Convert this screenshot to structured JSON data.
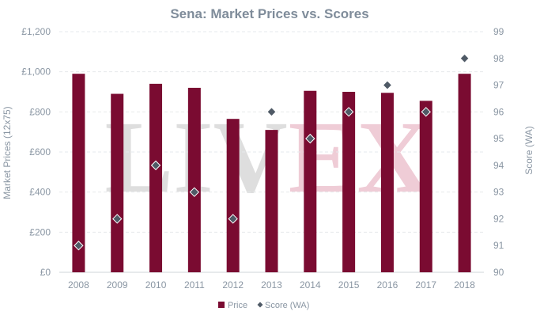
{
  "chart_data": {
    "type": "bar",
    "title": "Sena: Market Prices vs. Scores",
    "categories": [
      "2008",
      "2009",
      "2010",
      "2011",
      "2012",
      "2013",
      "2014",
      "2015",
      "2016",
      "2017",
      "2018"
    ],
    "series": [
      {
        "name": "Price",
        "type": "bar",
        "axis": "left",
        "values": [
          990,
          890,
          940,
          920,
          765,
          710,
          905,
          900,
          895,
          855,
          990
        ]
      },
      {
        "name": "Score (WA)",
        "type": "scatter",
        "axis": "right",
        "values": [
          91,
          92,
          94,
          93,
          92,
          96,
          95,
          96,
          97,
          96,
          98
        ]
      }
    ],
    "y_left": {
      "label": "Market Prices (12x75)",
      "range": [
        0,
        1200
      ],
      "ticks": [
        0,
        200,
        400,
        600,
        800,
        1000,
        1200
      ],
      "tick_labels": [
        "£0",
        "£200",
        "£400",
        "£600",
        "£800",
        "£1,000",
        "£1,200"
      ]
    },
    "y_right": {
      "label": "Score (WA)",
      "range": [
        90,
        99
      ],
      "ticks": [
        90,
        91,
        92,
        93,
        94,
        95,
        96,
        97,
        98,
        99
      ],
      "tick_labels": [
        "90",
        "91",
        "92",
        "93",
        "94",
        "95",
        "96",
        "97",
        "98",
        "99"
      ]
    },
    "grid": true,
    "legend_position": "bottom",
    "colors": {
      "bar": "#7a0b31",
      "marker": "#4f5a66",
      "marker_stroke": "#ffffff"
    }
  },
  "watermark": {
    "left": "LIV",
    "right": "EX"
  }
}
